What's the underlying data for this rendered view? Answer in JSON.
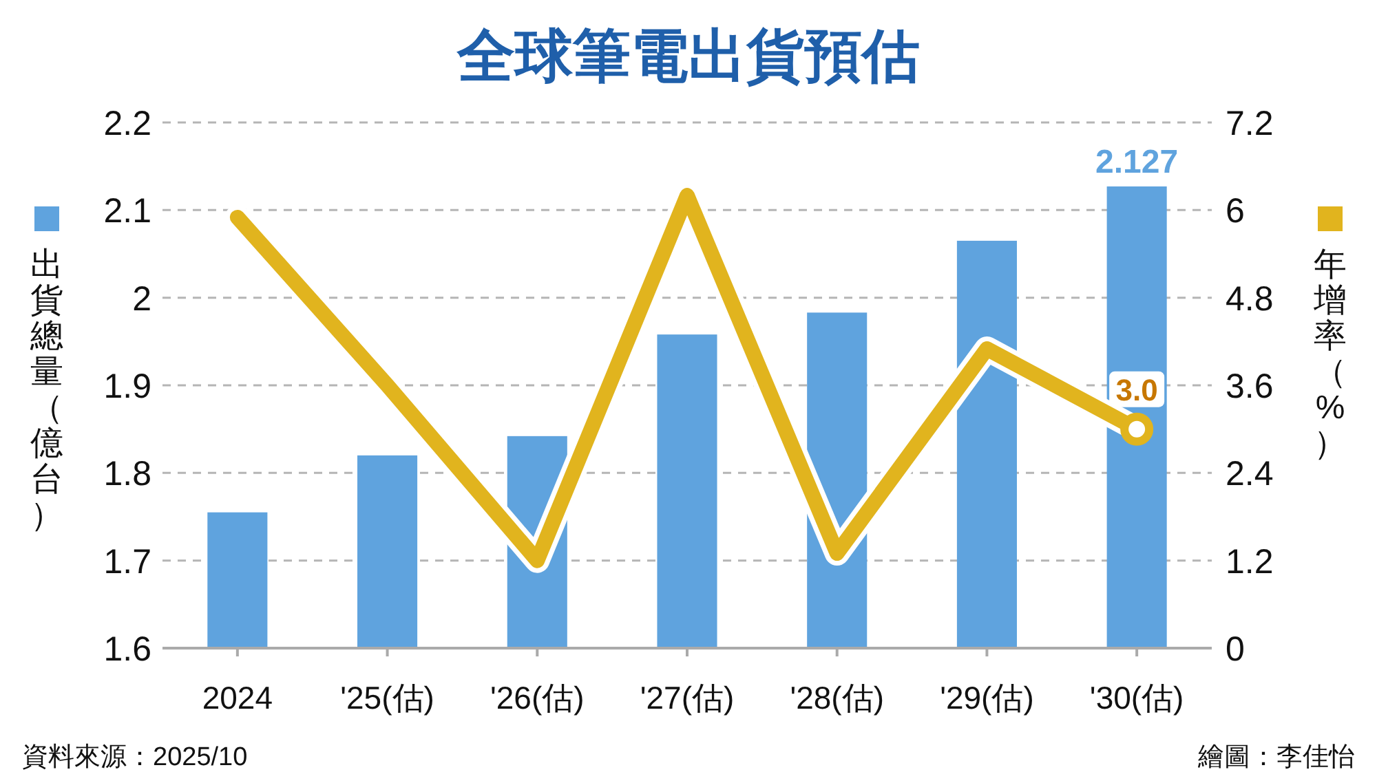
{
  "chart_data": {
    "type": "bar",
    "title": "全球筆電出貨預估",
    "ylabel": "出貨總量（億台）",
    "y2label": "年增率（%）",
    "categories": [
      "2024",
      "'25(估)",
      "'26(估)",
      "'27(估)",
      "'28(估)",
      "'29(估)",
      "'30(估)"
    ],
    "series": [
      {
        "type": "bar",
        "color": "#5fa3de",
        "values": [
          1.755,
          1.82,
          1.842,
          1.958,
          1.983,
          2.065,
          2.127
        ],
        "value_labels": [
          null,
          null,
          null,
          null,
          null,
          null,
          "2.127"
        ]
      },
      {
        "type": "line",
        "axis": "y2",
        "color": "#e1b41e",
        "values": [
          5.9,
          3.6,
          1.2,
          6.2,
          1.3,
          4.1,
          3.0
        ],
        "value_labels": [
          null,
          null,
          null,
          null,
          null,
          null,
          "3.0"
        ]
      }
    ],
    "ylim": [
      1.6,
      2.2
    ],
    "yticks": [
      1.6,
      1.7,
      1.8,
      1.9,
      2.0,
      2.1,
      2.2
    ],
    "y2lim": [
      0,
      7.2
    ],
    "y2ticks": [
      0,
      1.2,
      2.4,
      3.6,
      4.8,
      6.0,
      7.2
    ],
    "grid": "y",
    "line_style": "solid",
    "annotations": [
      "資料來源：2025/10",
      "繪圖：李佳怡"
    ]
  }
}
